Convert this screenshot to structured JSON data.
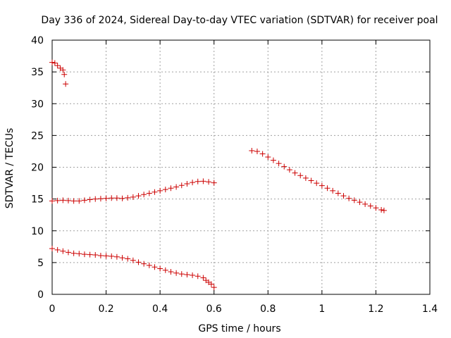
{
  "chart_data": {
    "type": "scatter",
    "title": "Day 336 of 2024, Sidereal Day-to-day VTEC variation (SDTVAR) for receiver poal",
    "xlabel": "GPS time / hours",
    "ylabel": "SDTVAR / TECUs",
    "xlim": [
      0,
      1.4
    ],
    "ylim": [
      0,
      40
    ],
    "xticks": [
      0,
      0.2,
      0.4,
      0.6,
      0.8,
      1,
      1.2,
      1.4
    ],
    "xtick_labels": [
      "0",
      "0.2",
      "0.4",
      "0.6",
      "0.8",
      "1",
      "1.2",
      "1.4"
    ],
    "yticks": [
      0,
      5,
      10,
      15,
      20,
      25,
      30,
      35,
      40
    ],
    "ytick_labels": [
      "0",
      "5",
      "10",
      "15",
      "20",
      "25",
      "30",
      "35",
      "40"
    ],
    "grid": true,
    "marker": "+",
    "color": "#cc0000",
    "series": [
      {
        "name": "seg-top-start",
        "points": [
          [
            0.0,
            36.5
          ],
          [
            0.01,
            36.4
          ],
          [
            0.02,
            36.0
          ],
          [
            0.03,
            35.6
          ],
          [
            0.04,
            35.3
          ],
          [
            0.045,
            34.6
          ],
          [
            0.05,
            33.1
          ]
        ]
      },
      {
        "name": "seg-middle",
        "points": [
          [
            0.0,
            14.7
          ],
          [
            0.02,
            14.75
          ],
          [
            0.04,
            14.8
          ],
          [
            0.06,
            14.75
          ],
          [
            0.08,
            14.7
          ],
          [
            0.1,
            14.7
          ],
          [
            0.12,
            14.8
          ],
          [
            0.14,
            14.9
          ],
          [
            0.16,
            15.0
          ],
          [
            0.18,
            15.05
          ],
          [
            0.2,
            15.1
          ],
          [
            0.22,
            15.15
          ],
          [
            0.24,
            15.15
          ],
          [
            0.26,
            15.1
          ],
          [
            0.28,
            15.2
          ],
          [
            0.3,
            15.3
          ],
          [
            0.32,
            15.5
          ],
          [
            0.34,
            15.7
          ],
          [
            0.36,
            15.9
          ],
          [
            0.38,
            16.1
          ],
          [
            0.4,
            16.3
          ],
          [
            0.42,
            16.5
          ],
          [
            0.44,
            16.7
          ],
          [
            0.46,
            16.9
          ],
          [
            0.48,
            17.15
          ],
          [
            0.5,
            17.4
          ],
          [
            0.52,
            17.6
          ],
          [
            0.54,
            17.75
          ],
          [
            0.56,
            17.8
          ],
          [
            0.58,
            17.7
          ],
          [
            0.6,
            17.55
          ]
        ]
      },
      {
        "name": "seg-lower",
        "points": [
          [
            0.0,
            7.2
          ],
          [
            0.02,
            7.0
          ],
          [
            0.04,
            6.8
          ],
          [
            0.06,
            6.6
          ],
          [
            0.08,
            6.45
          ],
          [
            0.1,
            6.4
          ],
          [
            0.12,
            6.3
          ],
          [
            0.14,
            6.25
          ],
          [
            0.16,
            6.2
          ],
          [
            0.18,
            6.1
          ],
          [
            0.2,
            6.05
          ],
          [
            0.22,
            6.0
          ],
          [
            0.24,
            5.9
          ],
          [
            0.26,
            5.75
          ],
          [
            0.28,
            5.6
          ],
          [
            0.3,
            5.35
          ],
          [
            0.32,
            5.05
          ],
          [
            0.34,
            4.8
          ],
          [
            0.36,
            4.55
          ],
          [
            0.38,
            4.3
          ],
          [
            0.4,
            4.05
          ],
          [
            0.42,
            3.8
          ],
          [
            0.44,
            3.55
          ],
          [
            0.46,
            3.35
          ],
          [
            0.48,
            3.2
          ],
          [
            0.5,
            3.1
          ],
          [
            0.52,
            3.0
          ],
          [
            0.54,
            2.85
          ],
          [
            0.56,
            2.6
          ],
          [
            0.57,
            2.2
          ],
          [
            0.58,
            1.9
          ],
          [
            0.59,
            1.6
          ],
          [
            0.6,
            1.1
          ]
        ]
      },
      {
        "name": "seg-right",
        "points": [
          [
            0.74,
            22.6
          ],
          [
            0.76,
            22.5
          ],
          [
            0.78,
            22.1
          ],
          [
            0.8,
            21.6
          ],
          [
            0.82,
            21.1
          ],
          [
            0.84,
            20.6
          ],
          [
            0.86,
            20.1
          ],
          [
            0.88,
            19.6
          ],
          [
            0.9,
            19.1
          ],
          [
            0.92,
            18.7
          ],
          [
            0.94,
            18.3
          ],
          [
            0.96,
            17.9
          ],
          [
            0.98,
            17.5
          ],
          [
            1.0,
            17.1
          ],
          [
            1.02,
            16.7
          ],
          [
            1.04,
            16.3
          ],
          [
            1.06,
            15.9
          ],
          [
            1.08,
            15.5
          ],
          [
            1.1,
            15.1
          ],
          [
            1.12,
            14.8
          ],
          [
            1.14,
            14.5
          ],
          [
            1.16,
            14.2
          ],
          [
            1.18,
            13.9
          ],
          [
            1.2,
            13.6
          ],
          [
            1.22,
            13.3
          ],
          [
            1.23,
            13.2
          ]
        ]
      }
    ]
  }
}
